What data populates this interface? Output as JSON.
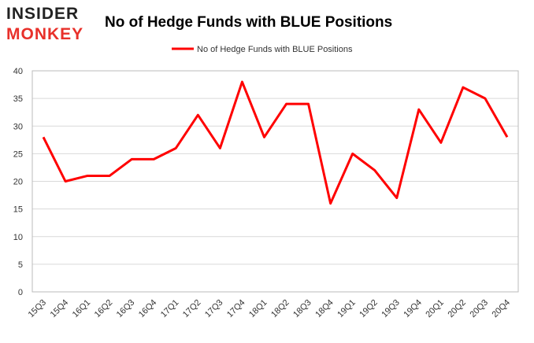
{
  "logo": {
    "top": "INSIDER",
    "bottom": "MONKEY"
  },
  "chart_data": {
    "type": "line",
    "title": "No of Hedge Funds with BLUE Positions",
    "categories": [
      "15Q3",
      "15Q4",
      "16Q1",
      "16Q2",
      "16Q3",
      "16Q4",
      "17Q1",
      "17Q2",
      "17Q3",
      "17Q4",
      "18Q1",
      "18Q2",
      "18Q3",
      "18Q4",
      "19Q1",
      "19Q2",
      "19Q3",
      "19Q4",
      "20Q1",
      "20Q2",
      "20Q3",
      "20Q4"
    ],
    "series": [
      {
        "name": "No of Hedge Funds with BLUE Positions",
        "color": "#ff0000",
        "values": [
          28,
          20,
          21,
          21,
          24,
          24,
          26,
          32,
          26,
          38,
          28,
          34,
          34,
          16,
          25,
          22,
          17,
          33,
          27,
          37,
          35,
          28
        ]
      }
    ],
    "ylim": [
      0,
      40
    ],
    "yticks": [
      0,
      5,
      10,
      15,
      20,
      25,
      30,
      35,
      40
    ],
    "grid": true,
    "legend": "top"
  }
}
